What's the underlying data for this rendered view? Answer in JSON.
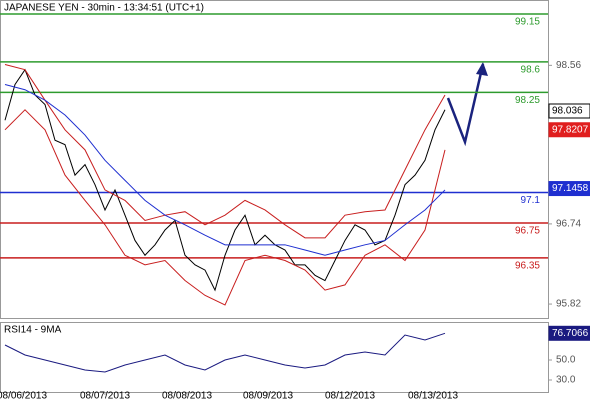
{
  "chart_data": [
    {
      "type": "line",
      "title": "JAPANESE YEN - 30min - 13:34:51 (UTC+1)",
      "xlim": [
        -0.5,
        54.3
      ],
      "ylim": [
        95.66,
        99.31
      ],
      "yticks": [
        98.56,
        96.74,
        95.82
      ],
      "levels": [
        {
          "value": 99.15,
          "color": "#2e9b2e"
        },
        {
          "value": 98.6,
          "color": "#2e9b2e"
        },
        {
          "value": 98.25,
          "color": "#2e9b2e"
        },
        {
          "value": 97.1,
          "color": "#1f2fd0"
        },
        {
          "value": 96.75,
          "color": "#c81e1e"
        },
        {
          "value": 96.35,
          "color": "#c81e1e"
        }
      ],
      "price_tags": [
        {
          "value": 98.036,
          "color": "#000000"
        },
        {
          "value": 97.8207,
          "color": "#e01e1e"
        },
        {
          "value": 97.1458,
          "color": "#1f2fd0"
        }
      ],
      "series": [
        {
          "color": "#000000",
          "x": [
            0,
            1,
            2,
            3,
            4,
            5,
            6,
            7,
            8,
            9,
            10,
            11,
            12,
            13,
            14,
            15,
            16,
            17,
            18,
            19,
            20,
            21,
            22,
            23,
            24,
            25,
            26,
            27,
            28,
            29,
            30,
            31,
            32,
            33,
            34,
            35,
            36,
            37,
            38,
            39,
            40,
            41,
            42,
            43,
            44
          ],
          "values": [
            97.93,
            98.34,
            98.51,
            98.22,
            98.11,
            97.7,
            97.65,
            97.3,
            97.42,
            97.19,
            96.9,
            97.13,
            96.84,
            96.55,
            96.38,
            96.5,
            96.67,
            96.78,
            96.38,
            96.27,
            96.21,
            95.98,
            96.38,
            96.67,
            96.84,
            96.5,
            96.61,
            96.5,
            96.44,
            96.27,
            96.27,
            96.15,
            96.09,
            96.32,
            96.55,
            96.73,
            96.67,
            96.5,
            96.55,
            96.84,
            97.19,
            97.3,
            97.47,
            97.82,
            98.05
          ]
        },
        {
          "color": "#c81e1e",
          "x": [
            0,
            2,
            4,
            6,
            8,
            10,
            12,
            14,
            16,
            18,
            20,
            22,
            24,
            26,
            28,
            30,
            32,
            34,
            36,
            38,
            40,
            42,
            44
          ],
          "values": [
            98.57,
            98.51,
            98.16,
            97.82,
            97.59,
            97.13,
            97.01,
            96.78,
            96.84,
            96.88,
            96.73,
            96.84,
            97.01,
            96.9,
            96.73,
            96.58,
            96.58,
            96.84,
            96.88,
            96.9,
            97.36,
            97.82,
            98.22
          ]
        },
        {
          "color": "#c81e1e",
          "x": [
            0,
            2,
            4,
            6,
            8,
            10,
            12,
            14,
            16,
            18,
            20,
            22,
            24,
            26,
            28,
            30,
            32,
            34,
            36,
            38,
            40,
            42,
            44
          ],
          "values": [
            97.82,
            98.05,
            97.82,
            97.3,
            97.01,
            96.73,
            96.38,
            96.27,
            96.32,
            96.09,
            95.92,
            95.81,
            96.32,
            96.38,
            96.32,
            96.21,
            95.98,
            96.04,
            96.38,
            96.5,
            96.32,
            96.67,
            97.59
          ]
        },
        {
          "color": "#1f2fd0",
          "x": [
            0,
            2,
            4,
            6,
            8,
            10,
            12,
            14,
            16,
            18,
            20,
            22,
            24,
            26,
            28,
            30,
            32,
            34,
            36,
            38,
            40,
            42,
            44
          ],
          "values": [
            98.34,
            98.28,
            98.16,
            97.99,
            97.76,
            97.47,
            97.24,
            97.01,
            96.84,
            96.73,
            96.61,
            96.5,
            96.5,
            96.5,
            96.5,
            96.44,
            96.38,
            96.44,
            96.5,
            96.55,
            96.73,
            96.9,
            97.13
          ]
        }
      ]
    },
    {
      "type": "line",
      "title": "RSI14 - 9MA",
      "xlim": [
        -0.5,
        54.3
      ],
      "ylim": [
        18,
        88
      ],
      "yticks": [
        {
          "value": 50,
          "label": "50.0"
        },
        {
          "value": 30,
          "label": "30.0"
        }
      ],
      "xticks": [
        {
          "value": 1.7,
          "label": "08/06/2013"
        },
        {
          "value": 10,
          "label": "08/07/2013"
        },
        {
          "value": 18.2,
          "label": "08/08/2013"
        },
        {
          "value": 26.3,
          "label": "08/09/2013"
        },
        {
          "value": 34.5,
          "label": "08/12/2013"
        },
        {
          "value": 42.8,
          "label": "08/13/2013"
        }
      ],
      "price_tags": [
        {
          "value": 76.7066,
          "color": "#1a1a80"
        }
      ],
      "series": [
        {
          "color": "#1a1a80",
          "x": [
            0,
            2,
            4,
            6,
            8,
            10,
            12,
            14,
            16,
            18,
            20,
            22,
            24,
            26,
            28,
            30,
            32,
            34,
            36,
            38,
            40,
            42,
            44
          ],
          "values": [
            65,
            55,
            50,
            45,
            40,
            38,
            45,
            50,
            55,
            45,
            40,
            50,
            55,
            50,
            45,
            42,
            45,
            55,
            58,
            55,
            75,
            70,
            76.7
          ]
        }
      ]
    }
  ]
}
